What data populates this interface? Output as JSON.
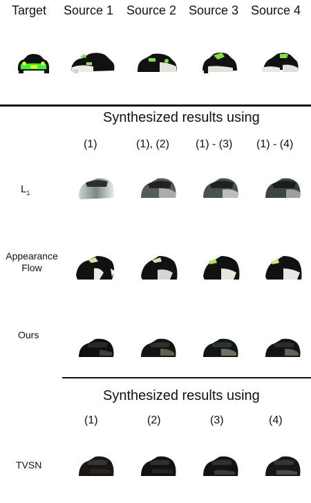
{
  "header": {
    "columns": [
      "Target",
      "Source 1",
      "Source 2",
      "Source 3",
      "Source 4"
    ]
  },
  "section1": {
    "title": "Synthesized results using",
    "columns": [
      "(1)",
      "(1), (2)",
      "(1) - (3)",
      "(1) - (4)"
    ],
    "rows": [
      {
        "label": "L",
        "label_sub": "1"
      },
      {
        "label_line1": "Appearance",
        "label_line2": "Flow"
      },
      {
        "label": "Ours"
      }
    ]
  },
  "section2": {
    "title": "Synthesized results using",
    "columns": [
      "(1)",
      "(2)",
      "(3)",
      "(4)"
    ],
    "rows": [
      {
        "label": "TVSN"
      }
    ]
  },
  "colors": {
    "target_body": "#3cf03c",
    "target_accent": "#e0ff20",
    "car_dark": "#111111",
    "car_grey": "#8a9090",
    "rule": "#111111"
  }
}
